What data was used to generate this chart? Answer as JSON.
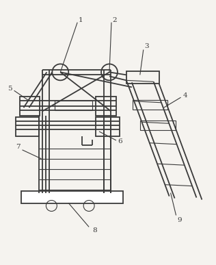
{
  "bg_color": "#f5f3ef",
  "line_color": "#3a3a3a",
  "figsize": [
    3.16,
    3.87
  ],
  "dpi": 100,
  "lw_main": 1.3,
  "lw_thin": 0.8,
  "label_fs": 7.5
}
